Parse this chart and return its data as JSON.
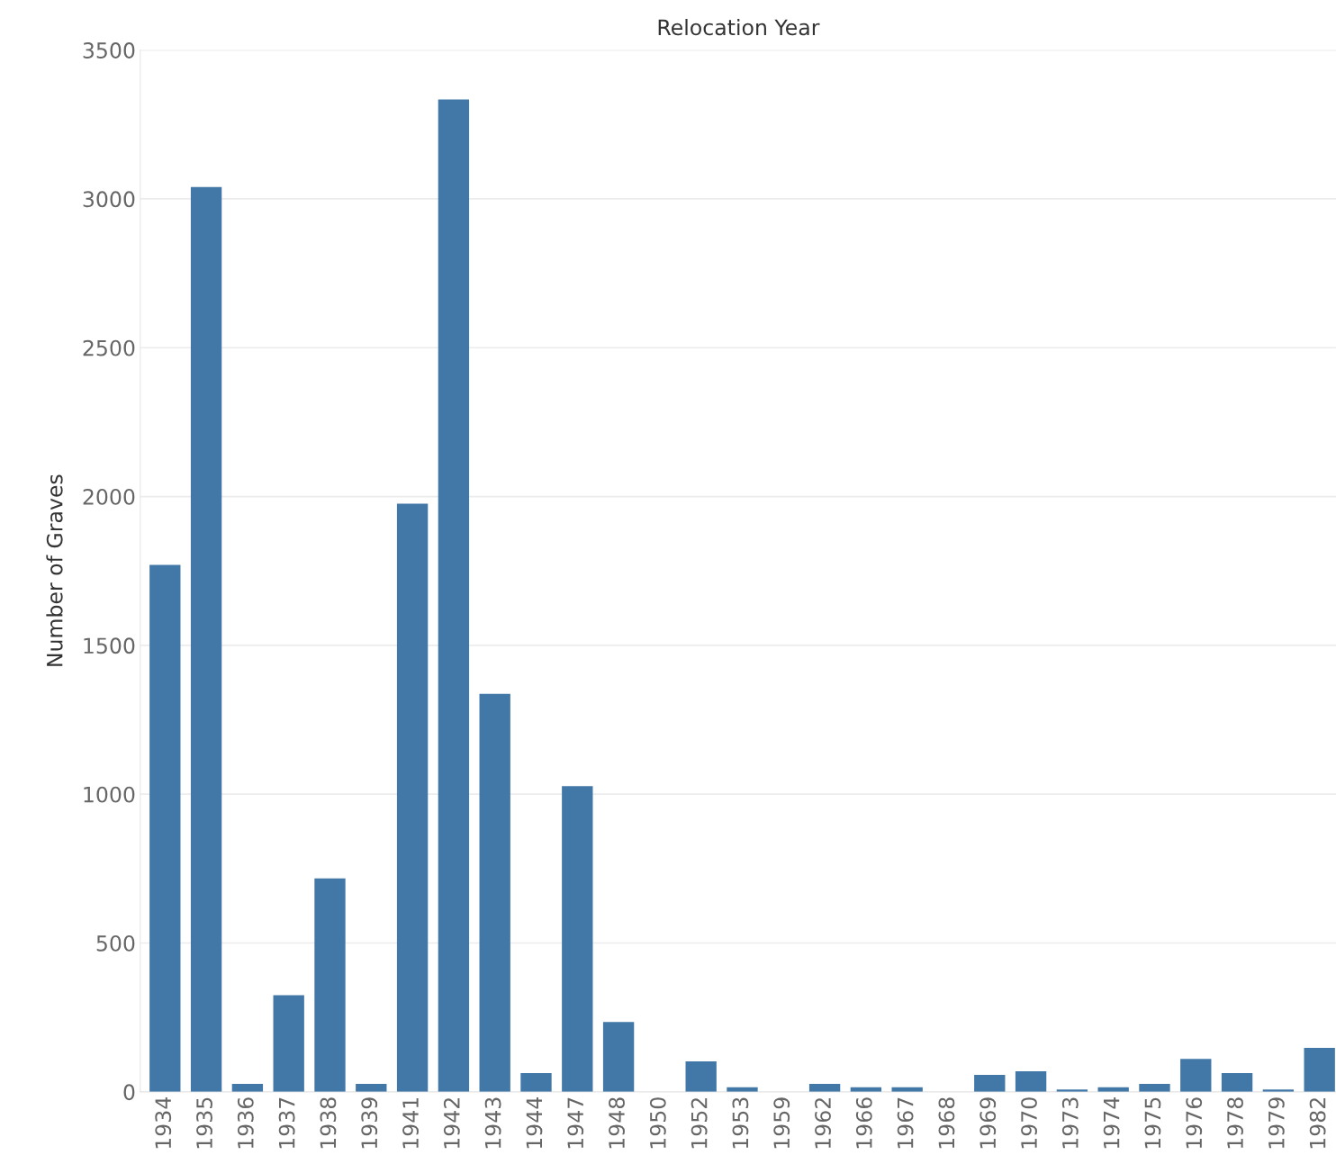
{
  "chart_data": {
    "type": "bar",
    "xlabel": "Relocation Year",
    "ylabel": "Number of Graves",
    "categories": [
      "1934",
      "1935",
      "1936",
      "1937",
      "1938",
      "1939",
      "1941",
      "1942",
      "1943",
      "1944",
      "1947",
      "1948",
      "1950",
      "1952",
      "1953",
      "1959",
      "1962",
      "1966",
      "1967",
      "1968",
      "1969",
      "1970",
      "1973",
      "1974",
      "1975",
      "1976",
      "1978",
      "1979",
      "1982"
    ],
    "values": [
      1770,
      3040,
      27,
      325,
      717,
      27,
      1976,
      3334,
      1337,
      63,
      1027,
      235,
      null,
      102,
      15,
      null,
      27,
      15,
      15,
      null,
      57,
      69,
      8,
      15,
      27,
      111,
      63,
      8,
      148
    ],
    "color": "#4178a8",
    "ylim": [
      0,
      3500
    ],
    "yticks": [
      0,
      500,
      1000,
      1500,
      2000,
      2500,
      3000,
      3500
    ],
    "grid": "y"
  }
}
